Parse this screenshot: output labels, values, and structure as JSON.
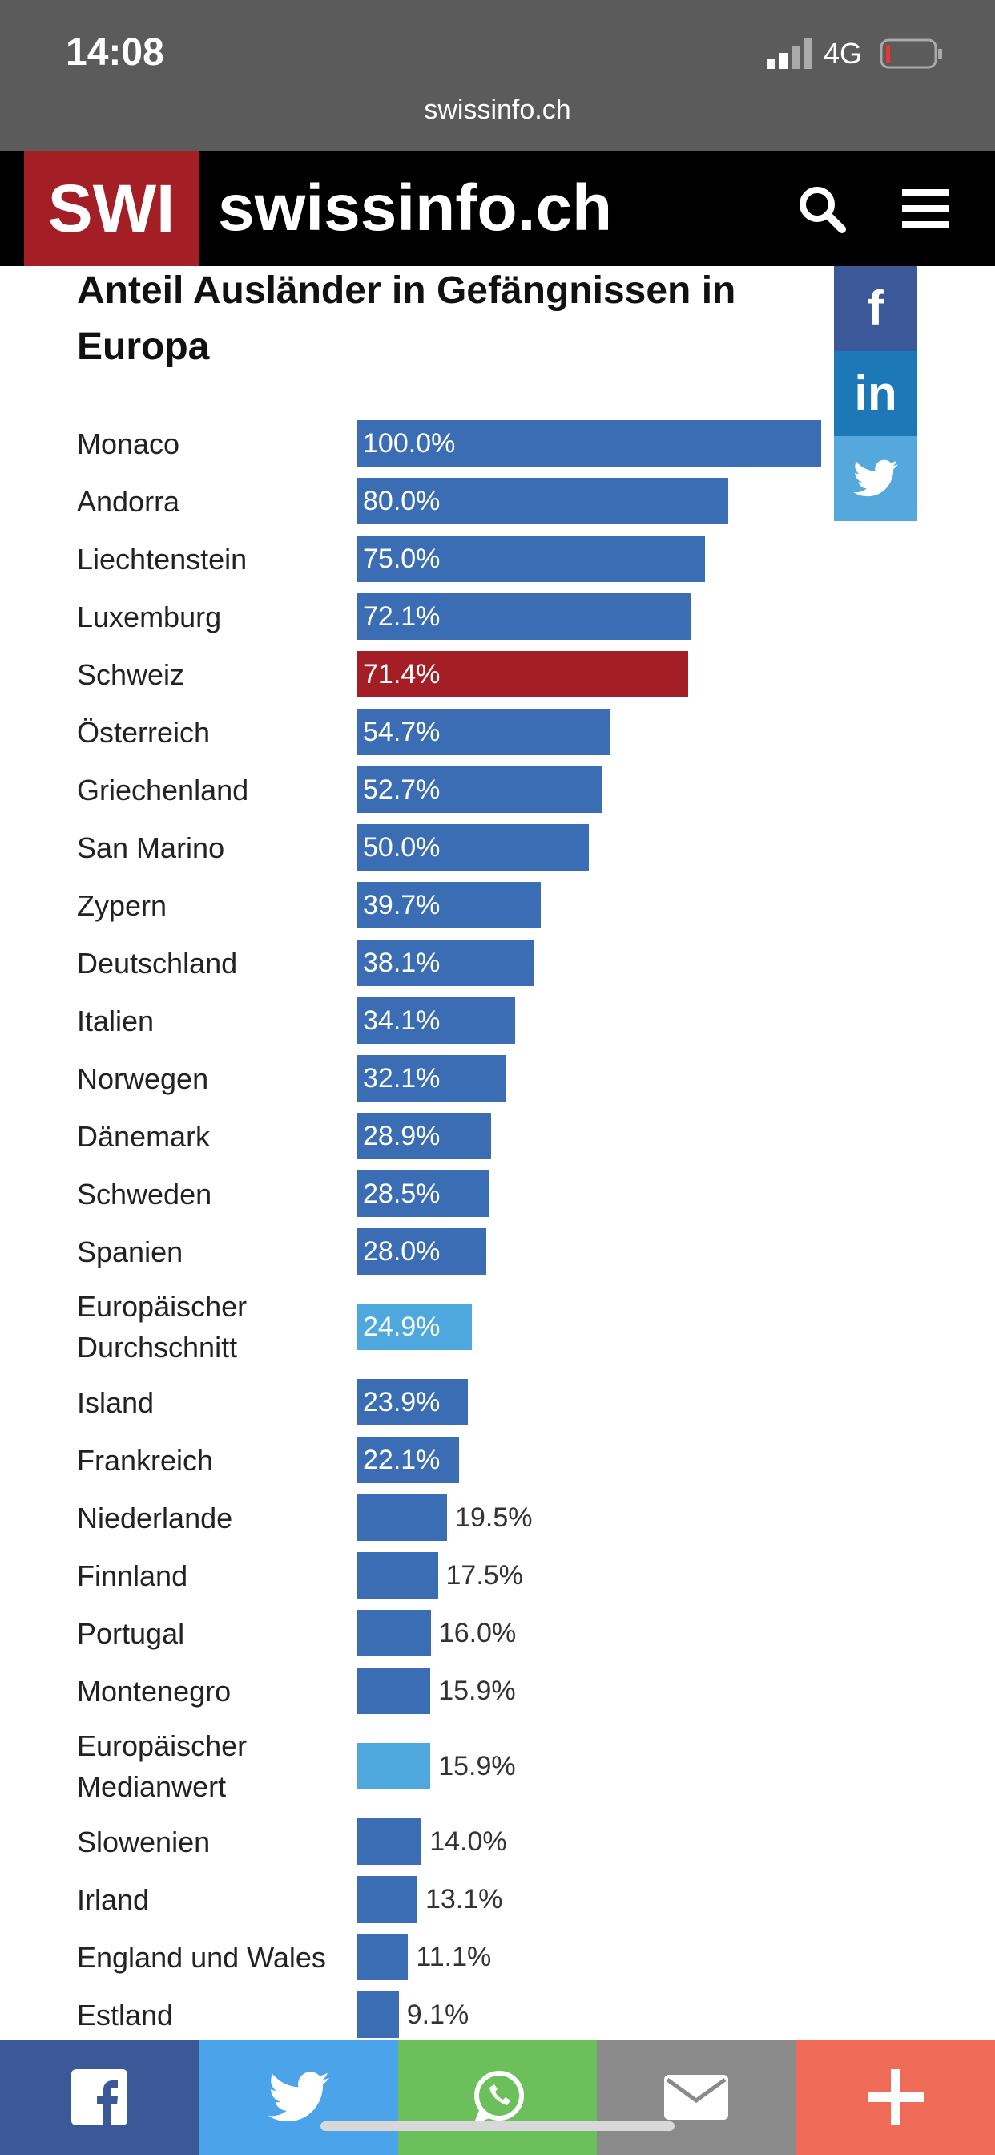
{
  "status_bar": {
    "time": "14:08",
    "network": "4G",
    "url": "swissinfo.ch"
  },
  "header": {
    "logo": "SWI",
    "site": "swissinfo.ch"
  },
  "social": {
    "facebook": "f",
    "linkedin": "in"
  },
  "chart_data": {
    "type": "bar",
    "orientation": "horizontal",
    "title": "Anteil Ausländer in Gefängnissen in Europa",
    "categories": [
      "Monaco",
      "Andorra",
      "Liechtenstein",
      "Luxemburg",
      "Schweiz",
      "Österreich",
      "Griechenland",
      "San Marino",
      "Zypern",
      "Deutschland",
      "Italien",
      "Norwegen",
      "Dänemark",
      "Schweden",
      "Spanien",
      "Europäischer Durchschnitt",
      "Island",
      "Frankreich",
      "Niederlande",
      "Finnland",
      "Portugal",
      "Montenegro",
      "Europäischer Medianwert",
      "Slowenien",
      "Irland",
      "England und Wales",
      "Estland"
    ],
    "values": [
      100,
      80,
      75,
      72.1,
      71.4,
      54.7,
      52.7,
      50,
      39.7,
      38.1,
      34.1,
      32.1,
      28.9,
      28.5,
      28,
      24.9,
      23.9,
      22.1,
      19.5,
      17.5,
      16,
      15.9,
      15.9,
      14,
      13.1,
      11.1,
      9.1
    ],
    "value_labels": [
      "100.0%",
      "80.0%",
      "75.0%",
      "72.1%",
      "71.4%",
      "54.7%",
      "52.7%",
      "50.0%",
      "39.7%",
      "38.1%",
      "34.1%",
      "32.1%",
      "28.9%",
      "28.5%",
      "28.0%",
      "24.9%",
      "23.9%",
      "22.1%",
      "19.5%",
      "17.5%",
      "16.0%",
      "15.9%",
      "15.9%",
      "14.0%",
      "13.1%",
      "11.1%",
      "9.1%"
    ],
    "colors": [
      "#3b6db4",
      "#3b6db4",
      "#3b6db4",
      "#3b6db4",
      "#a31f25",
      "#3b6db4",
      "#3b6db4",
      "#3b6db4",
      "#3b6db4",
      "#3b6db4",
      "#3b6db4",
      "#3b6db4",
      "#3b6db4",
      "#3b6db4",
      "#3b6db4",
      "#4ea8de",
      "#3b6db4",
      "#3b6db4",
      "#3b6db4",
      "#3b6db4",
      "#3b6db4",
      "#3b6db4",
      "#4ea8de",
      "#3b6db4",
      "#3b6db4",
      "#3b6db4",
      "#3b6db4"
    ]
  }
}
